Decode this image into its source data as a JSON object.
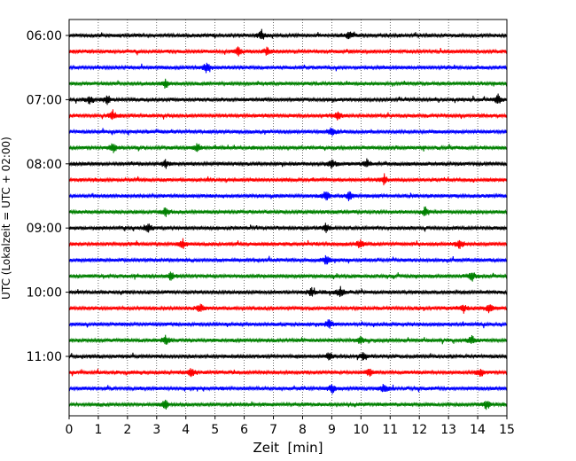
{
  "chart_data": {
    "type": "line",
    "title": "",
    "xlabel": "Zeit  [min]",
    "ylabel": "UTC (Lokalzeit = UTC + 02:00)",
    "xlim": [
      0,
      15
    ],
    "x_ticks": [
      0,
      1,
      2,
      3,
      4,
      5,
      6,
      7,
      8,
      9,
      10,
      11,
      12,
      13,
      14,
      15
    ],
    "y_tick_labels": [
      "06:00",
      "07:00",
      "08:00",
      "09:00",
      "10:00",
      "11:00"
    ],
    "y_tick_row_indices": [
      0,
      4,
      8,
      12,
      16,
      20
    ],
    "grid": "vertical dotted at each minute",
    "trace_interval_min": 15,
    "trace_colors": [
      "#000000",
      "#ff0000",
      "#0000ff",
      "#008000"
    ],
    "series": [
      {
        "start": "06:00",
        "events_min": [
          6.6,
          9.6
        ]
      },
      {
        "start": "06:15",
        "events_min": [
          5.8,
          6.8
        ]
      },
      {
        "start": "06:30",
        "events_min": [
          4.7
        ]
      },
      {
        "start": "06:45",
        "events_min": [
          3.3
        ]
      },
      {
        "start": "07:00",
        "events_min": [
          0.7,
          1.3,
          14.7
        ]
      },
      {
        "start": "07:15",
        "events_min": [
          1.5,
          9.2
        ]
      },
      {
        "start": "07:30",
        "events_min": [
          9.0
        ]
      },
      {
        "start": "07:45",
        "events_min": [
          1.5,
          4.4
        ]
      },
      {
        "start": "08:00",
        "events_min": [
          3.3,
          9.0,
          10.2
        ]
      },
      {
        "start": "08:15",
        "events_min": [
          10.8
        ]
      },
      {
        "start": "08:30",
        "events_min": [
          8.8,
          9.6
        ]
      },
      {
        "start": "08:45",
        "events_min": [
          3.3,
          12.2
        ]
      },
      {
        "start": "09:00",
        "events_min": [
          2.7,
          8.8
        ]
      },
      {
        "start": "09:15",
        "events_min": [
          3.9,
          10.0,
          13.4
        ]
      },
      {
        "start": "09:30",
        "events_min": [
          8.8
        ]
      },
      {
        "start": "09:45",
        "events_min": [
          3.5,
          13.8
        ]
      },
      {
        "start": "10:00",
        "events_min": [
          8.3,
          9.3
        ]
      },
      {
        "start": "10:15",
        "events_min": [
          4.5,
          13.5,
          14.4
        ]
      },
      {
        "start": "10:30",
        "events_min": [
          8.9
        ]
      },
      {
        "start": "10:45",
        "events_min": [
          3.3,
          10.0,
          13.8
        ]
      },
      {
        "start": "11:00",
        "events_min": [
          8.9,
          10.1
        ]
      },
      {
        "start": "11:15",
        "events_min": [
          4.2,
          10.3,
          14.1
        ]
      },
      {
        "start": "11:30",
        "events_min": [
          9.0,
          10.8
        ]
      },
      {
        "start": "11:45",
        "events_min": [
          3.3,
          14.3
        ]
      }
    ]
  }
}
